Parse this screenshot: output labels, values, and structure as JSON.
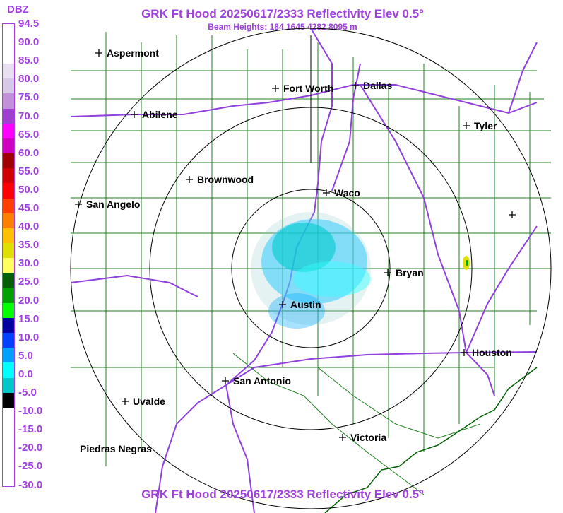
{
  "header": {
    "title": "GRK Ft Hood 20250617/2333 Reflectivity Elev 0.5°",
    "subtitle": "Beam Heights: 184 1645 4282 8095 m",
    "footer": "GRK Ft Hood 20250617/2333 Reflectivity Elev 0.5°"
  },
  "legend": {
    "unit": "DBZ",
    "ticks": [
      "94.5",
      "90.0",
      "85.0",
      "80.0",
      "75.0",
      "70.0",
      "65.0",
      "60.0",
      "55.0",
      "50.0",
      "45.0",
      "40.0",
      "35.0",
      "30.0",
      "25.0",
      "20.0",
      "15.0",
      "10.0",
      "5.0",
      "0.0",
      "-5.0",
      "-10.0",
      "-15.0",
      "-20.0",
      "-25.0",
      "-30.0"
    ],
    "colors": [
      "#e8e0f0",
      "#d8c8e8",
      "#c090d8",
      "#a040d0",
      "#ff00ff",
      "#d000c0",
      "#a00000",
      "#d00000",
      "#ff0000",
      "#ff4000",
      "#ff8000",
      "#ffc000",
      "#e0e000",
      "#ffff60",
      "#006000",
      "#00a000",
      "#00ff00",
      "#0000a0",
      "#0040ff",
      "#00a0ff",
      "#00ffff",
      "#00c8c8",
      "#000000"
    ]
  },
  "cities": [
    {
      "name": "Aspermont"
    },
    {
      "name": "Fort Worth"
    },
    {
      "name": "Dallas"
    },
    {
      "name": "Abilene"
    },
    {
      "name": "Tyler"
    },
    {
      "name": "Brownwood"
    },
    {
      "name": "Waco"
    },
    {
      "name": "San Angelo"
    },
    {
      "name": "Bryan"
    },
    {
      "name": "Austin"
    },
    {
      "name": "Houston"
    },
    {
      "name": "San Antonio"
    },
    {
      "name": "Uvalde"
    },
    {
      "name": "Victoria"
    },
    {
      "name": "Piedras Negras"
    }
  ]
}
